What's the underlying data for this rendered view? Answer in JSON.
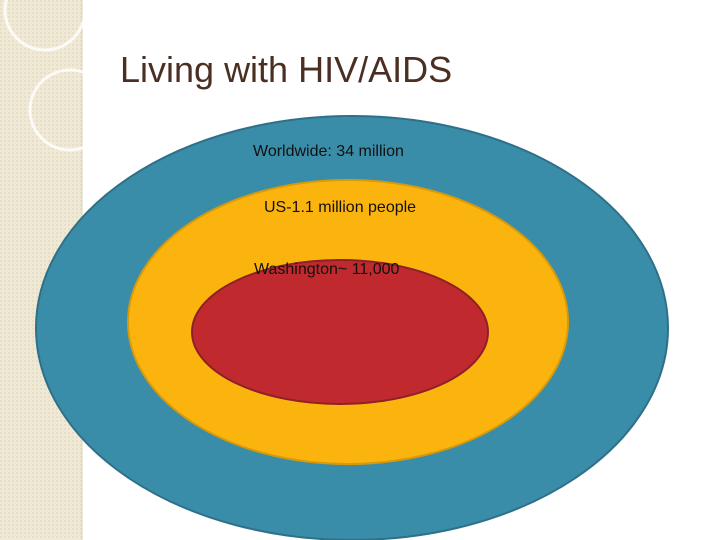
{
  "title": "Living with HIV/AIDS",
  "rings": [
    {
      "label": "Worldwide: 34 million"
    },
    {
      "label": "US-1.1 million people"
    },
    {
      "label": "Washington~ 11,000"
    }
  ]
}
